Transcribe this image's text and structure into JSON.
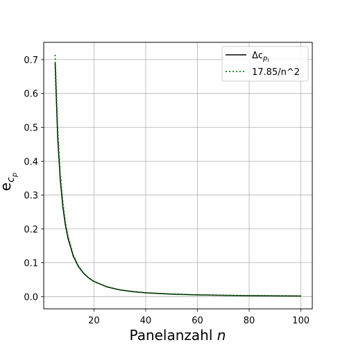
{
  "chart_data": {
    "type": "line",
    "title": "",
    "xlabel": "Panelanzahl",
    "xlabel_var": "n",
    "ylabel": "e",
    "ylabel_sub": "c",
    "ylabel_subsub": "p",
    "xlim": [
      0.6,
      104.4
    ],
    "ylim": [
      -0.036,
      0.751
    ],
    "xticks": [
      20,
      40,
      60,
      80,
      100
    ],
    "yticks": [
      0.0,
      0.1,
      0.2,
      0.3,
      0.4,
      0.5,
      0.6,
      0.7
    ],
    "xtick_labels": [
      "20",
      "40",
      "60",
      "80",
      "100"
    ],
    "ytick_labels": [
      "0.0",
      "0.1",
      "0.2",
      "0.3",
      "0.4",
      "0.5",
      "0.6",
      "0.7"
    ],
    "grid": true,
    "legend_position": "top-right",
    "series": [
      {
        "name": "Δc",
        "name_sub": "p",
        "name_subsub": "i",
        "color": "#000000",
        "style": "solid",
        "x": [
          5,
          6,
          7,
          8,
          9,
          10,
          12,
          14,
          16,
          18,
          20,
          25,
          30,
          35,
          40,
          50,
          60,
          70,
          80,
          90,
          100
        ],
        "values": [
          0.69,
          0.47,
          0.345,
          0.265,
          0.21,
          0.172,
          0.12,
          0.089,
          0.069,
          0.055,
          0.045,
          0.029,
          0.02,
          0.015,
          0.0115,
          0.0075,
          0.0052,
          0.0039,
          0.003,
          0.0024,
          0.0019
        ]
      },
      {
        "name": "17.85/n^2",
        "color": "#008000",
        "style": "dotted",
        "x": [
          5,
          6,
          7,
          8,
          9,
          10,
          12,
          14,
          16,
          18,
          20,
          25,
          30,
          35,
          40,
          50,
          60,
          70,
          80,
          90,
          100
        ],
        "values": [
          0.714,
          0.496,
          0.364,
          0.279,
          0.22,
          0.1785,
          0.124,
          0.091,
          0.0697,
          0.0551,
          0.0446,
          0.0286,
          0.0198,
          0.0146,
          0.0112,
          0.0071,
          0.005,
          0.0036,
          0.0028,
          0.0022,
          0.0018
        ]
      }
    ]
  }
}
